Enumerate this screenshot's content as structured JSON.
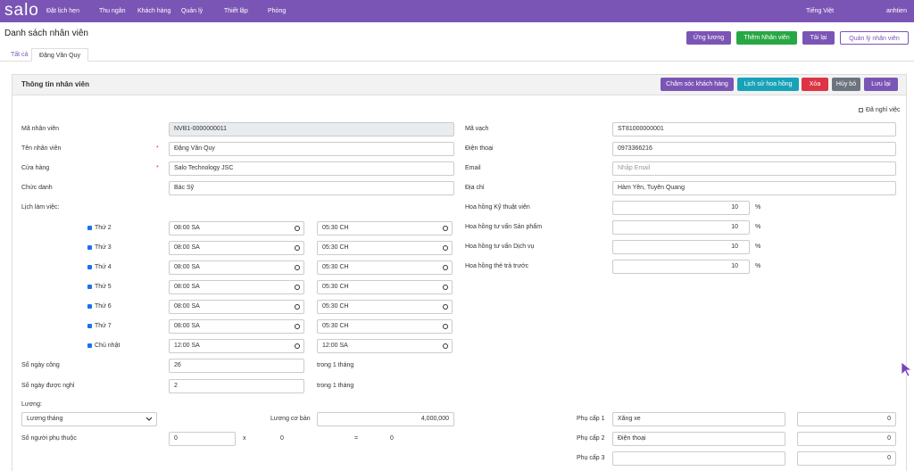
{
  "navbar": {
    "logo": "salo",
    "menu": [
      "Đặt lịch hẹn",
      "Thu ngân",
      "Khách hàng",
      "Quản lý",
      "Thiết lập",
      "Phòng"
    ],
    "language": "Tiếng Việt",
    "user": "anhtien"
  },
  "header": {
    "title": "Danh sách nhân viên",
    "buttons": [
      "Ứng lương",
      "Thêm Nhân viên",
      "Tải lại",
      "Quản lý nhân viên"
    ]
  },
  "tabs": [
    "Tất cả",
    "Đặng Văn Quy"
  ],
  "panel": {
    "title": "Thông tin nhân viên",
    "buttons": [
      "Chăm sóc khách hàng",
      "Lịch sử hoa hồng",
      "Xóa",
      "Hủy bỏ",
      "Lưu lại"
    ],
    "resigned_label": "Đã nghỉ việc"
  },
  "required_mark": "*",
  "left_fields": [
    {
      "label": "Mã nhân viên",
      "value": "NVB1-0000000011"
    },
    {
      "label": "Tên nhân viên",
      "value": "Đặng Văn Quy"
    },
    {
      "label": "Cửa hàng",
      "value": "Salo Technology JSC"
    },
    {
      "label": "Chức danh",
      "value": "Bác Sỹ"
    }
  ],
  "right_fields": [
    {
      "label": "Mã vạch",
      "value": "ST81000000001"
    },
    {
      "label": "Điện thoại",
      "value": "0973366216"
    },
    {
      "label": "Email",
      "placeholder": "Nhập Email"
    },
    {
      "label": "Địa chỉ",
      "value": "Hàm Yên, Tuyên Quang"
    }
  ],
  "schedule": {
    "label": "Lịch làm việc:",
    "days": [
      {
        "day": "Thứ 2",
        "start": "08:00 SA",
        "end": "05:30 CH"
      },
      {
        "day": "Thứ 3",
        "start": "08:00 SA",
        "end": "05:30 CH"
      },
      {
        "day": "Thứ 4",
        "start": "08:00 SA",
        "end": "05:30 CH"
      },
      {
        "day": "Thứ 5",
        "start": "08:00 SA",
        "end": "05:30 CH"
      },
      {
        "day": "Thứ 6",
        "start": "08:00 SA",
        "end": "05:30 CH"
      },
      {
        "day": "Thứ 7",
        "start": "08:00 SA",
        "end": "05:30 CH"
      },
      {
        "day": "Chủ nhật",
        "start": "12:00 SA",
        "end": "12:00 SA"
      }
    ]
  },
  "commissions": [
    {
      "label": "Hoa hồng Kỹ thuật viên",
      "value": "10",
      "unit": "%"
    },
    {
      "label": "Hoa hồng tư vấn Sản phẩm",
      "value": "10",
      "unit": "%"
    },
    {
      "label": "Hoa hồng tư vấn Dịch vụ",
      "value": "10",
      "unit": "%"
    },
    {
      "label": "Hoa hồng thẻ trả trước",
      "value": "10",
      "unit": "%"
    }
  ],
  "work_days": {
    "label": "Số ngày công",
    "value": "26",
    "suffix": "trong 1 tháng"
  },
  "days_off": {
    "label": "Số ngày được nghỉ",
    "value": "2",
    "suffix": "trong 1 tháng"
  },
  "salary": {
    "label": "Lương:",
    "type": "Lương tháng",
    "base_label": "Lương cơ bản",
    "base": "4,000,000"
  },
  "dependents": {
    "label": "Số người phụ thuộc",
    "count": "0",
    "times": "x",
    "rate": "0",
    "equals": "=",
    "total": "0"
  },
  "allowances": [
    {
      "label": "Phụ cấp 1",
      "name": "Xăng xe",
      "amount": "0"
    },
    {
      "label": "Phụ cấp 2",
      "name": "Điện thoại",
      "amount": "0"
    },
    {
      "label": "Phụ cấp 3",
      "amount": "0"
    }
  ]
}
